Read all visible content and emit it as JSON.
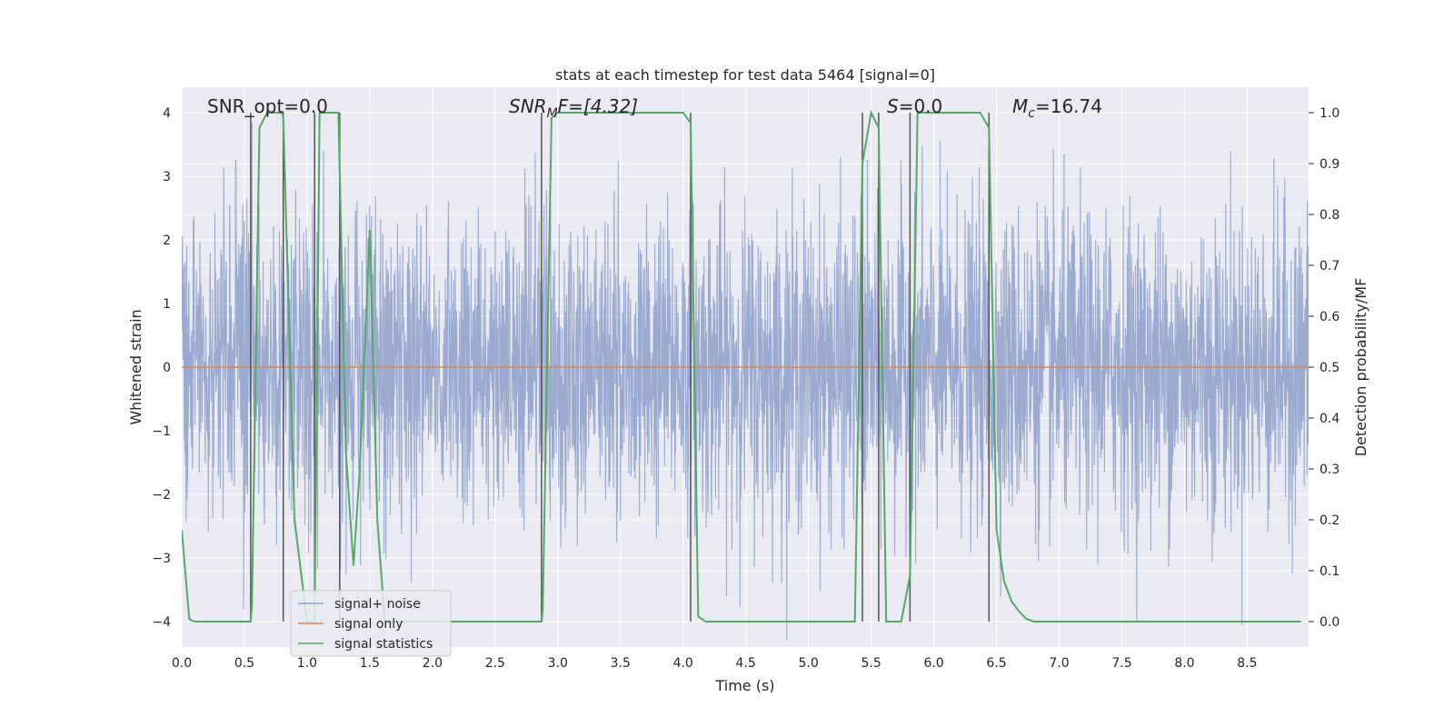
{
  "chart_data": {
    "type": "line",
    "title": "stats at each timestep for test data 5464 [signal=0]",
    "xlabel": "Time (s)",
    "ylabel_left": "Whitened strain",
    "ylabel_right": "Detection probability/MF",
    "xlim": [
      0,
      8.99
    ],
    "ylim_left": [
      -4.4,
      4.4
    ],
    "ylim_right": [
      -0.05,
      1.05
    ],
    "x_ticks": [
      "0.0",
      "0.5",
      "1.0",
      "1.5",
      "2.0",
      "2.5",
      "3.0",
      "3.5",
      "4.0",
      "4.5",
      "5.0",
      "5.5",
      "6.0",
      "6.5",
      "7.0",
      "7.5",
      "8.0",
      "8.5"
    ],
    "y_ticks_left": [
      "4",
      "3",
      "2",
      "1",
      "0",
      "−1",
      "−2",
      "−3",
      "−4"
    ],
    "y_ticks_right": [
      "1.0",
      "0.9",
      "0.8",
      "0.7",
      "0.6",
      "0.5",
      "0.4",
      "0.3",
      "0.2",
      "0.1",
      "0.0"
    ],
    "grid": true,
    "colors": {
      "background": "#eaeaf2",
      "noise": "#8c9fca",
      "signal_only": "#dd8452",
      "statistics": "#55a868",
      "vlines": "#555555",
      "grid": "#ffffff"
    },
    "annotations": {
      "snr_opt": "SNR_opt=0.0",
      "snr_mf_main": "SNR",
      "snr_mf_sub": "M",
      "snr_mf_rest": "F=[4.32]",
      "s_sym": "S",
      "s_val": "=0.0",
      "mc_sym": "M",
      "mc_sub": "c",
      "mc_val": "=16.74"
    },
    "legend": {
      "placement": "lower-left",
      "entries": [
        {
          "label": "signal+ noise",
          "color": "#8c9fca"
        },
        {
          "label": "signal only",
          "color": "#dd8452"
        },
        {
          "label": "signal statistics",
          "color": "#55a868"
        }
      ]
    },
    "noise_amplitude_std": 1.2,
    "signal_only_value": 0,
    "vertical_lines_x": [
      0.55,
      0.81,
      1.06,
      1.26,
      2.87,
      4.06,
      5.43,
      5.56,
      5.81,
      6.44
    ],
    "statistics_series": {
      "name": "signal statistics",
      "x": [
        0.0,
        0.06,
        0.1,
        0.55,
        0.56,
        0.62,
        0.68,
        0.8,
        0.81,
        0.9,
        1.0,
        1.06,
        1.1,
        1.16,
        1.25,
        1.31,
        1.37,
        1.42,
        1.5,
        1.56,
        1.62,
        2.87,
        2.88,
        2.95,
        3.0,
        4.0,
        4.06,
        4.12,
        4.18,
        5.37,
        5.43,
        5.5,
        5.56,
        5.62,
        5.68,
        5.74,
        5.81,
        5.87,
        5.93,
        6.0,
        6.37,
        6.44,
        6.5,
        6.56,
        6.62,
        6.68,
        6.74,
        6.8,
        8.93
      ],
      "y": [
        0.18,
        0.005,
        0.0,
        0.0,
        0.03,
        0.97,
        1.0,
        1.0,
        0.99,
        0.2,
        0.0,
        0.0,
        1.0,
        1.0,
        1.0,
        0.33,
        0.11,
        0.3,
        0.77,
        0.2,
        0.0,
        0.0,
        0.02,
        0.99,
        1.0,
        1.0,
        0.98,
        0.01,
        0.0,
        0.0,
        0.9,
        1.0,
        0.97,
        0.0,
        0.0,
        0.0,
        0.09,
        1.0,
        1.0,
        1.0,
        1.0,
        0.97,
        0.18,
        0.08,
        0.04,
        0.02,
        0.005,
        0.0,
        0.0
      ]
    }
  }
}
